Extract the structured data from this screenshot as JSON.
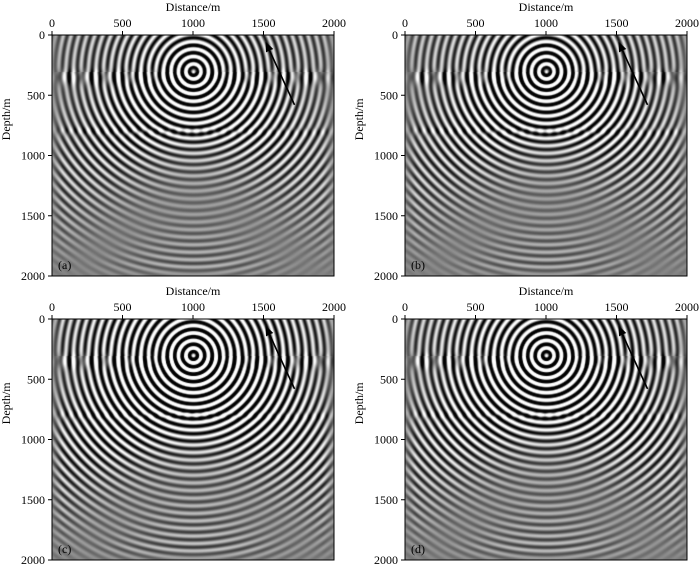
{
  "figure": {
    "panels": [
      {
        "id": "a",
        "label": "(a)",
        "xlabel": "Distance/m",
        "ylabel": "Depth/m",
        "xticks": [
          "0",
          "500",
          "1000",
          "1500",
          "2000"
        ],
        "yticks": [
          "0",
          "500",
          "1000",
          "1500",
          "2000"
        ]
      },
      {
        "id": "b",
        "label": "(b)",
        "xlabel": "Distance/m",
        "ylabel": "Depth/m",
        "xticks": [
          "0",
          "500",
          "1000",
          "1500",
          "2000"
        ],
        "yticks": [
          "0",
          "500",
          "1000",
          "1500",
          "2000"
        ]
      },
      {
        "id": "c",
        "label": "(c)",
        "xlabel": "Distance/m",
        "ylabel": "Depth/m",
        "xticks": [
          "0",
          "500",
          "1000",
          "1500",
          "2000"
        ],
        "yticks": [
          "0",
          "500",
          "1000",
          "1500",
          "2000"
        ]
      },
      {
        "id": "d",
        "label": "(d)",
        "xlabel": "Distance/m",
        "ylabel": "Depth/m",
        "xticks": [
          "0",
          "500",
          "1000",
          "1500",
          "2000"
        ],
        "yticks": [
          "0",
          "500",
          "1000",
          "1500",
          "2000"
        ]
      }
    ],
    "colors": {
      "background": "#808080",
      "positive": "#ffffff",
      "negative": "#000000"
    }
  }
}
